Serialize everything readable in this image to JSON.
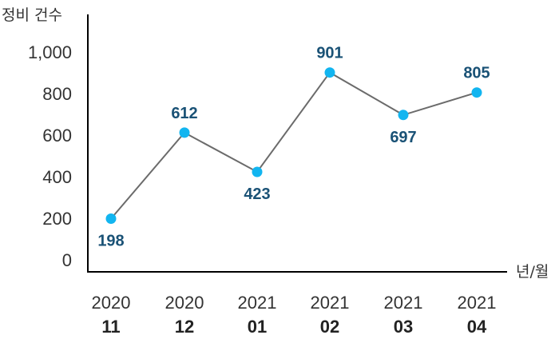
{
  "chart_data": {
    "type": "line",
    "title": "",
    "ylabel": "정비 건수",
    "xlabel": "년/월",
    "ylim": [
      0,
      1000
    ],
    "yticks": [
      "0",
      "200",
      "400",
      "600",
      "800",
      "1,000"
    ],
    "categories": [
      {
        "year": "2020",
        "month": "11"
      },
      {
        "year": "2020",
        "month": "12"
      },
      {
        "year": "2021",
        "month": "01"
      },
      {
        "year": "2021",
        "month": "02"
      },
      {
        "year": "2021",
        "month": "03"
      },
      {
        "year": "2021",
        "month": "04"
      }
    ],
    "values": [
      198,
      612,
      423,
      901,
      697,
      805
    ],
    "labels": [
      "198",
      "612",
      "423",
      "901",
      "697",
      "805"
    ],
    "label_positions": [
      "below",
      "above",
      "below",
      "above",
      "below",
      "above"
    ],
    "line_color": "#6b6b6b",
    "marker_color": "#12b5f0",
    "label_color": "#1a5276",
    "grid": false
  }
}
